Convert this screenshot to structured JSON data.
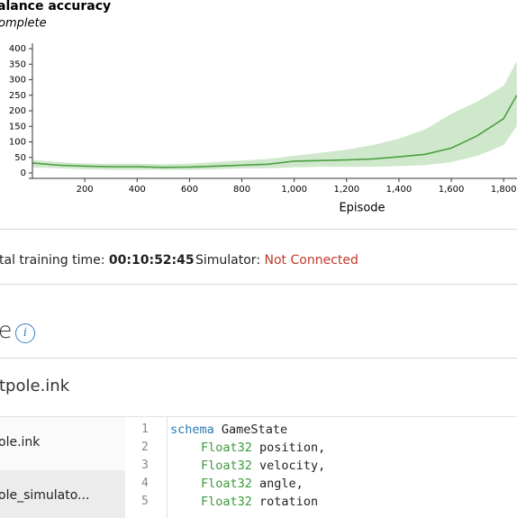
{
  "chart_data": {
    "type": "band-line",
    "title": "alance accuracy",
    "subtitle": "omplete",
    "xlabel": "Episode",
    "x": [
      0,
      100,
      200,
      300,
      400,
      500,
      600,
      700,
      800,
      900,
      1000,
      1100,
      1200,
      1300,
      1400,
      1500,
      1600,
      1700,
      1800,
      1850
    ],
    "values": [
      32,
      25,
      22,
      20,
      20,
      18,
      19,
      22,
      25,
      28,
      38,
      40,
      42,
      45,
      52,
      60,
      80,
      120,
      175,
      250
    ],
    "upper": [
      42,
      35,
      30,
      30,
      30,
      28,
      30,
      35,
      40,
      45,
      55,
      65,
      75,
      90,
      110,
      140,
      190,
      230,
      280,
      360
    ],
    "lower": [
      18,
      15,
      12,
      10,
      10,
      10,
      10,
      12,
      15,
      15,
      18,
      20,
      20,
      20,
      22,
      25,
      35,
      55,
      90,
      150
    ],
    "color": "#4c9e42",
    "band_color": "#cfe8cb",
    "xlim": [
      0,
      1851
    ],
    "xticks": [
      200,
      400,
      600,
      800,
      {
        "value": 1000,
        "label": "1,000"
      },
      {
        "value": 1200,
        "label": "1,200"
      },
      {
        "value": 1400,
        "label": "1,400"
      },
      {
        "value": 1600,
        "label": "1,600"
      },
      {
        "value": 1800,
        "label": "1,800"
      }
    ],
    "ylim": [
      0,
      400
    ],
    "yticks": [
      0,
      50,
      100,
      150,
      200,
      250,
      300,
      350,
      400
    ]
  },
  "status": {
    "training_label": "tal training time:",
    "training_time": "00:10:52:45",
    "simulator_label": "Simulator:",
    "simulator_status": "Not Connected"
  },
  "section": {
    "title": "e",
    "icon": "i"
  },
  "file": {
    "title": "tpole.ink"
  },
  "files": [
    "ole.ink",
    "ole_simulato..."
  ],
  "code": [
    {
      "number": 1,
      "keyword": "schema",
      "text": "GameState"
    },
    {
      "number": 2,
      "keyword": "Float32",
      "text": "position,"
    },
    {
      "number": 3,
      "keyword": "Float32",
      "text": "velocity,"
    },
    {
      "number": 4,
      "keyword": "Float32",
      "text": "angle,"
    },
    {
      "number": 5,
      "keyword": "Float32",
      "text": "rotation"
    }
  ]
}
